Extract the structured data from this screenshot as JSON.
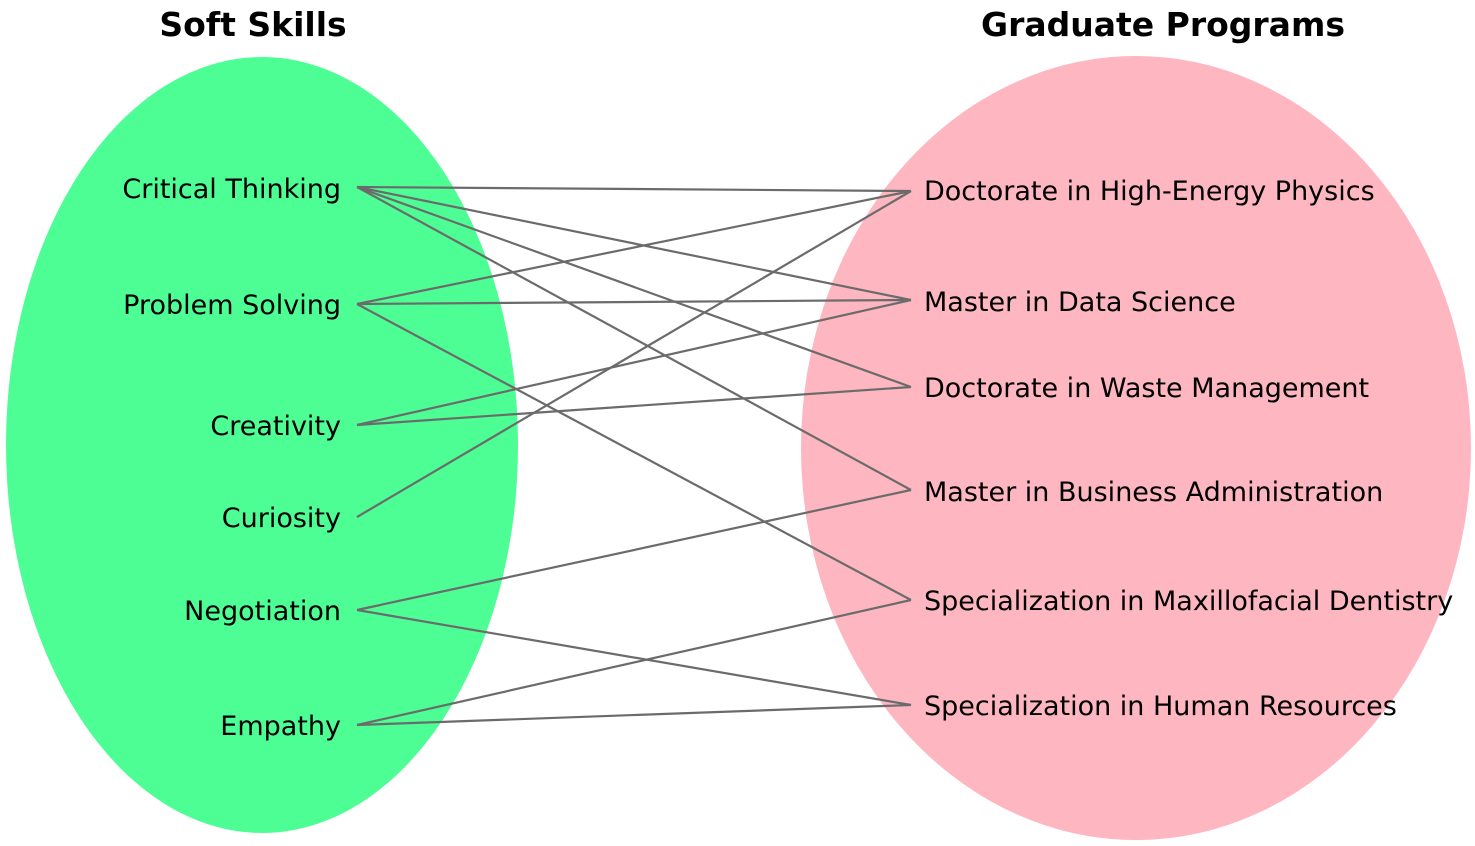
{
  "colors": {
    "left_group_fill": "#4cfe93",
    "right_group_fill": "#feb6c1",
    "edge": "#6b6b6b",
    "text": "#000000"
  },
  "left_group": {
    "title": "Soft Skills",
    "nodes": [
      {
        "id": "critical-thinking",
        "label": "Critical Thinking"
      },
      {
        "id": "problem-solving",
        "label": "Problem Solving"
      },
      {
        "id": "creativity",
        "label": "Creativity"
      },
      {
        "id": "curiosity",
        "label": "Curiosity"
      },
      {
        "id": "negotiation",
        "label": "Negotiation"
      },
      {
        "id": "empathy",
        "label": "Empathy"
      }
    ]
  },
  "right_group": {
    "title": "Graduate Programs",
    "nodes": [
      {
        "id": "doc-hep",
        "label": "Doctorate in High-Energy Physics"
      },
      {
        "id": "master-ds",
        "label": "Master in Data Science"
      },
      {
        "id": "doc-waste",
        "label": "Doctorate in Waste Management"
      },
      {
        "id": "mba",
        "label": "Master in Business Administration"
      },
      {
        "id": "spec-dent",
        "label": "Specialization in Maxillofacial Dentistry"
      },
      {
        "id": "spec-hr",
        "label": "Specialization in Human Resources"
      }
    ]
  },
  "edges": [
    {
      "from": "critical-thinking",
      "to": "doc-hep"
    },
    {
      "from": "critical-thinking",
      "to": "master-ds"
    },
    {
      "from": "critical-thinking",
      "to": "doc-waste"
    },
    {
      "from": "critical-thinking",
      "to": "mba"
    },
    {
      "from": "problem-solving",
      "to": "doc-hep"
    },
    {
      "from": "problem-solving",
      "to": "master-ds"
    },
    {
      "from": "problem-solving",
      "to": "spec-dent"
    },
    {
      "from": "creativity",
      "to": "master-ds"
    },
    {
      "from": "creativity",
      "to": "doc-waste"
    },
    {
      "from": "curiosity",
      "to": "doc-hep"
    },
    {
      "from": "negotiation",
      "to": "mba"
    },
    {
      "from": "negotiation",
      "to": "spec-hr"
    },
    {
      "from": "empathy",
      "to": "spec-dent"
    },
    {
      "from": "empathy",
      "to": "spec-hr"
    }
  ]
}
